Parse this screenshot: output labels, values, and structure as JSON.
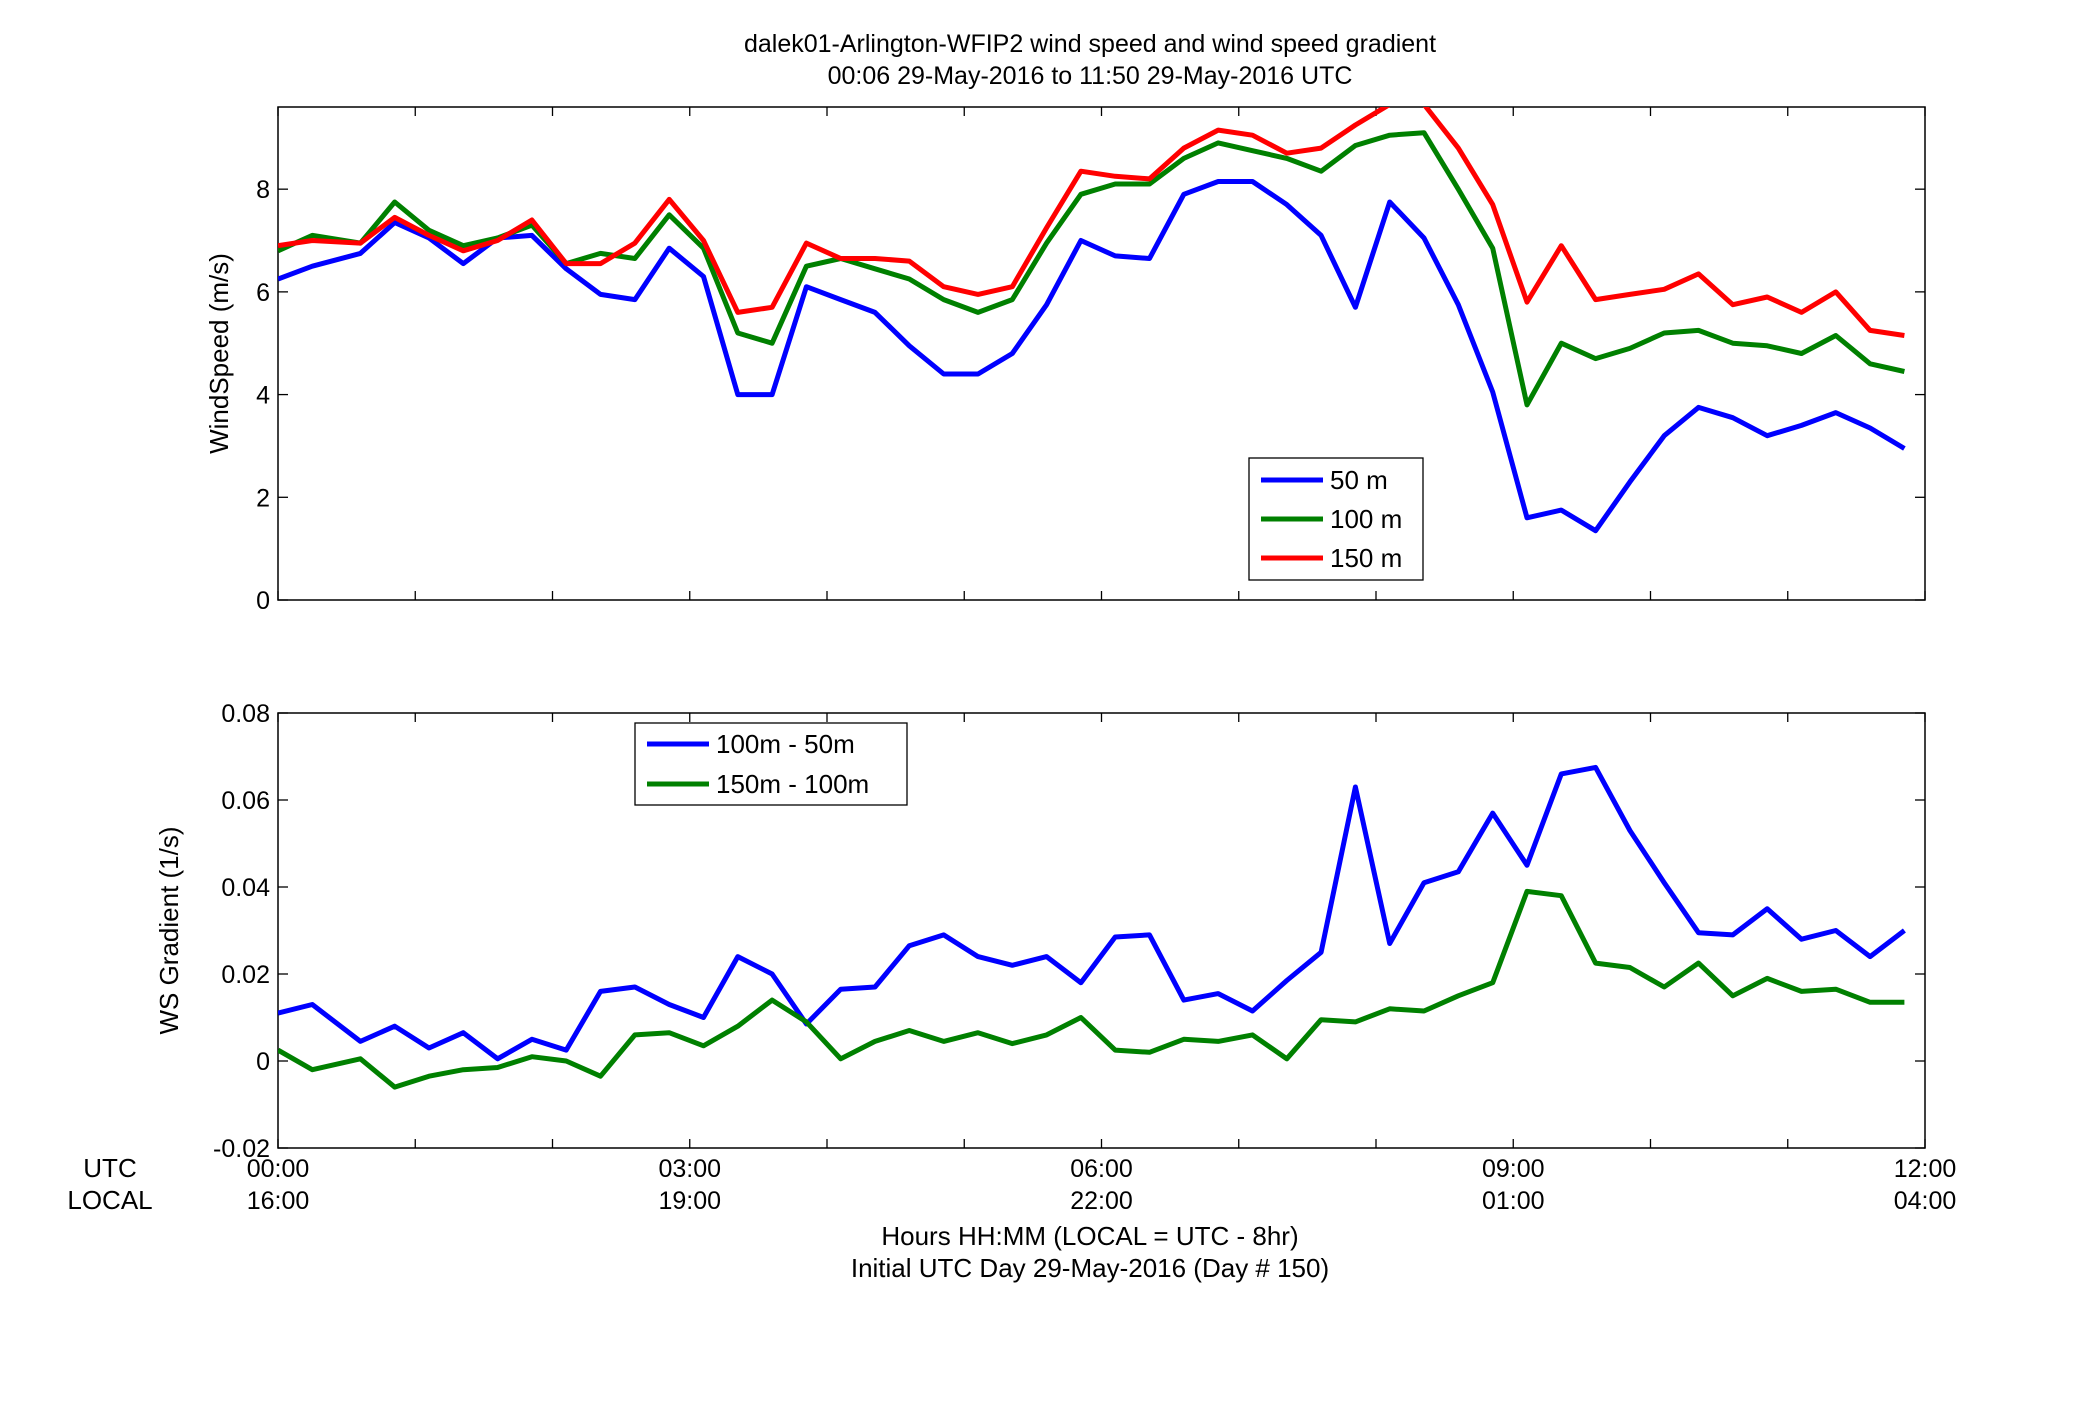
{
  "title_line1": "dalek01-Arlington-WFIP2  wind speed and wind speed gradient",
  "title_line2": "00:06 29-May-2016 to 11:50 29-May-2016  UTC",
  "xaxis": {
    "row1_label": "UTC",
    "row2_label": "LOCAL",
    "utc_ticks": [
      "00:00",
      "03:00",
      "06:00",
      "09:00",
      "12:00"
    ],
    "local_ticks": [
      "16:00",
      "19:00",
      "22:00",
      "01:00",
      "04:00"
    ],
    "xlabel_line1": "Hours HH:MM  (LOCAL = UTC - 8hr)",
    "xlabel_line2": "Initial UTC Day 29-May-2016 (Day # 150)"
  },
  "colors": {
    "blue": "#0000ff",
    "green": "#008000",
    "red": "#ff0000"
  },
  "chart_data": [
    {
      "type": "line",
      "ylabel": "WindSpeed (m/s)",
      "xlim": [
        0,
        12
      ],
      "ylim": [
        0,
        9.6
      ],
      "yticks": [
        0,
        2,
        4,
        6,
        8
      ],
      "yticks_text": [
        "0",
        "2",
        "4",
        "6",
        "8"
      ],
      "grid": false,
      "legend": "lower-right",
      "x": [
        0.0,
        0.25,
        0.6,
        0.85,
        1.1,
        1.35,
        1.6,
        1.85,
        2.1,
        2.35,
        2.6,
        2.85,
        3.1,
        3.35,
        3.6,
        3.85,
        4.1,
        4.35,
        4.6,
        4.85,
        5.1,
        5.35,
        5.6,
        5.85,
        6.1,
        6.35,
        6.6,
        6.85,
        7.1,
        7.35,
        7.6,
        7.85,
        8.1,
        8.35,
        8.6,
        8.85,
        9.1,
        9.35,
        9.6,
        9.85,
        10.1,
        10.35,
        10.6,
        10.85,
        11.1,
        11.35,
        11.6,
        11.85
      ],
      "series": [
        {
          "name": "50 m",
          "color": "#0000ff",
          "values": [
            6.25,
            6.5,
            6.75,
            7.35,
            7.05,
            6.55,
            7.05,
            7.1,
            6.45,
            5.95,
            5.85,
            6.85,
            6.3,
            4.0,
            4.0,
            6.1,
            5.85,
            5.6,
            4.95,
            4.4,
            4.4,
            4.8,
            5.75,
            7.0,
            6.7,
            6.65,
            7.9,
            8.15,
            8.15,
            7.7,
            7.1,
            5.7,
            7.75,
            7.05,
            5.75,
            4.05,
            1.6,
            1.75,
            1.35,
            2.3,
            3.2,
            3.75,
            3.55,
            3.2,
            3.4,
            3.65,
            3.35,
            2.95
          ]
        },
        {
          "name": "100 m",
          "color": "#008000",
          "values": [
            6.8,
            7.1,
            6.95,
            7.75,
            7.2,
            6.9,
            7.05,
            7.3,
            6.55,
            6.75,
            6.65,
            7.5,
            6.85,
            5.2,
            5.0,
            6.5,
            6.65,
            6.45,
            6.25,
            5.85,
            5.6,
            5.85,
            6.95,
            7.9,
            8.1,
            8.1,
            8.6,
            8.9,
            8.75,
            8.6,
            8.35,
            8.85,
            9.05,
            9.1,
            8.0,
            6.85,
            3.8,
            5.0,
            4.7,
            4.9,
            5.2,
            5.25,
            5.0,
            4.95,
            4.8,
            5.15,
            4.6,
            4.45
          ]
        },
        {
          "name": "150 m",
          "color": "#ff0000",
          "values": [
            6.9,
            7.0,
            6.95,
            7.45,
            7.1,
            6.8,
            7.0,
            7.4,
            6.55,
            6.55,
            6.95,
            7.8,
            7.0,
            5.6,
            5.7,
            6.95,
            6.65,
            6.65,
            6.6,
            6.1,
            5.95,
            6.1,
            7.25,
            8.35,
            8.25,
            8.2,
            8.8,
            9.15,
            9.05,
            8.7,
            8.8,
            9.25,
            9.65,
            9.65,
            8.8,
            7.7,
            5.8,
            6.9,
            5.85,
            5.95,
            6.05,
            6.35,
            5.75,
            5.9,
            5.6,
            6.0,
            5.25,
            5.15
          ]
        }
      ]
    },
    {
      "type": "line",
      "ylabel": "WS Gradient (1/s)",
      "xlim": [
        0,
        12
      ],
      "ylim": [
        -0.02,
        0.08
      ],
      "yticks": [
        -0.02,
        0,
        0.02,
        0.04,
        0.06,
        0.08
      ],
      "yticks_text": [
        "-0.02",
        "0",
        "0.02",
        "0.04",
        "0.06",
        "0.08"
      ],
      "grid": false,
      "legend": "top-left",
      "x": [
        0.0,
        0.25,
        0.6,
        0.85,
        1.1,
        1.35,
        1.6,
        1.85,
        2.1,
        2.35,
        2.6,
        2.85,
        3.1,
        3.35,
        3.6,
        3.85,
        4.1,
        4.35,
        4.6,
        4.85,
        5.1,
        5.35,
        5.6,
        5.85,
        6.1,
        6.35,
        6.6,
        6.85,
        7.1,
        7.35,
        7.6,
        7.85,
        8.1,
        8.35,
        8.6,
        8.85,
        9.1,
        9.35,
        9.6,
        9.85,
        10.1,
        10.35,
        10.6,
        10.85,
        11.1,
        11.35,
        11.6,
        11.85
      ],
      "series": [
        {
          "name": "100m - 50m",
          "color": "#0000ff",
          "values": [
            0.011,
            0.013,
            0.0045,
            0.008,
            0.003,
            0.0065,
            0.0005,
            0.005,
            0.0025,
            0.016,
            0.017,
            0.013,
            0.01,
            0.024,
            0.02,
            0.0085,
            0.0165,
            0.017,
            0.0265,
            0.029,
            0.024,
            0.022,
            0.024,
            0.018,
            0.0285,
            0.029,
            0.014,
            0.0155,
            0.0115,
            0.0185,
            0.025,
            0.063,
            0.027,
            0.041,
            0.0435,
            0.057,
            0.045,
            0.066,
            0.0675,
            0.053,
            0.041,
            0.0295,
            0.029,
            0.035,
            0.028,
            0.03,
            0.024,
            0.03
          ]
        },
        {
          "name": "150m - 100m",
          "color": "#008000",
          "values": [
            0.0025,
            -0.002,
            0.0005,
            -0.006,
            -0.0035,
            -0.002,
            -0.0015,
            0.001,
            0.0,
            -0.0035,
            0.006,
            0.0065,
            0.0035,
            0.008,
            0.014,
            0.009,
            0.0005,
            0.0045,
            0.007,
            0.0045,
            0.0065,
            0.004,
            0.006,
            0.01,
            0.0025,
            0.002,
            0.005,
            0.0045,
            0.006,
            0.0005,
            0.0095,
            0.009,
            0.012,
            0.0115,
            0.015,
            0.018,
            0.039,
            0.038,
            0.0225,
            0.0215,
            0.017,
            0.0225,
            0.015,
            0.019,
            0.016,
            0.0165,
            0.0135,
            0.0135
          ]
        }
      ]
    }
  ]
}
